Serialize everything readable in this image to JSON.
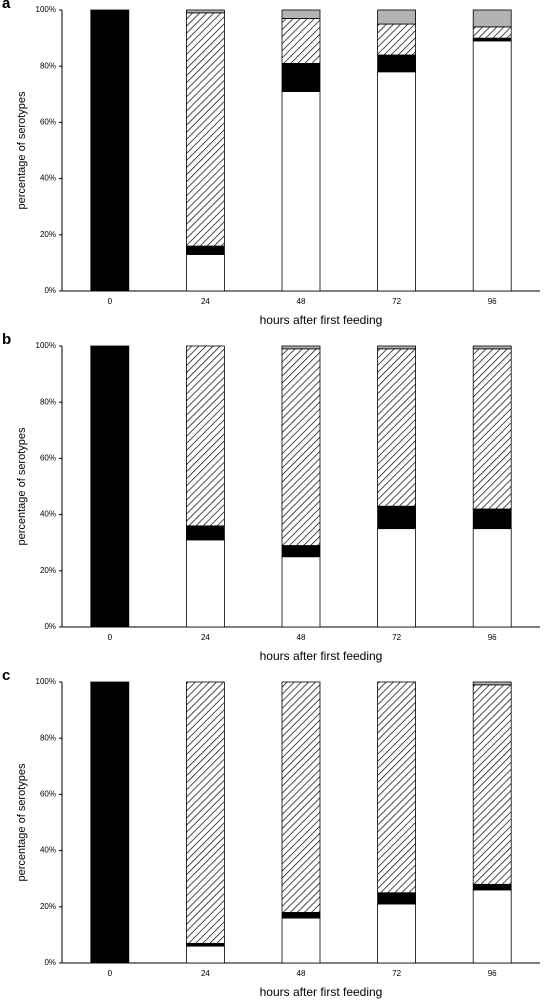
{
  "chart_data": [
    {
      "type": "bar",
      "stacked": true,
      "panel_label": "a",
      "x_label": "hours after first feeding",
      "y_label": "percentage of serotypes",
      "categories": [
        "0",
        "24",
        "48",
        "72",
        "96"
      ],
      "series": [
        {
          "color": "#ffffff",
          "values": [
            0,
            13,
            71,
            78,
            89
          ]
        },
        {
          "color": "#000000",
          "values": [
            100,
            3,
            10,
            6,
            1
          ]
        },
        {
          "color": "#000000",
          "pattern": "hatch",
          "values": [
            0,
            83,
            16,
            11,
            4
          ]
        },
        {
          "color": "#b3b3b3",
          "values": [
            0,
            1,
            3,
            5,
            6
          ]
        }
      ],
      "ylim": [
        0,
        100
      ],
      "yticks": [
        {
          "value": 0,
          "label": "0%"
        },
        {
          "value": 20,
          "label": "20%"
        },
        {
          "value": 40,
          "label": "40%"
        },
        {
          "value": 60,
          "label": "60%"
        },
        {
          "value": 80,
          "label": "80%"
        },
        {
          "value": 100,
          "label": "100%"
        }
      ],
      "grid": false
    },
    {
      "type": "bar",
      "stacked": true,
      "panel_label": "b",
      "x_label": "hours after first feeding",
      "y_label": "percentage of serotypes",
      "categories": [
        "0",
        "24",
        "48",
        "72",
        "96"
      ],
      "series": [
        {
          "color": "#ffffff",
          "values": [
            0,
            31,
            25,
            35,
            35
          ]
        },
        {
          "color": "#000000",
          "values": [
            100,
            5,
            4,
            8,
            7
          ]
        },
        {
          "color": "#000000",
          "pattern": "hatch",
          "values": [
            0,
            64,
            70,
            56,
            57
          ]
        },
        {
          "color": "#b3b3b3",
          "values": [
            0,
            0,
            1,
            1,
            1
          ]
        }
      ],
      "ylim": [
        0,
        100
      ],
      "yticks": [
        {
          "value": 0,
          "label": "0%"
        },
        {
          "value": 20,
          "label": "20%"
        },
        {
          "value": 40,
          "label": "40%"
        },
        {
          "value": 60,
          "label": "60%"
        },
        {
          "value": 80,
          "label": "80%"
        },
        {
          "value": 100,
          "label": "100%"
        }
      ],
      "grid": false
    },
    {
      "type": "bar",
      "stacked": true,
      "panel_label": "c",
      "x_label": "hours after first feeding",
      "y_label": "percentage of serotypes",
      "categories": [
        "0",
        "24",
        "48",
        "72",
        "96"
      ],
      "series": [
        {
          "color": "#ffffff",
          "values": [
            0,
            6,
            16,
            21,
            26
          ]
        },
        {
          "color": "#000000",
          "values": [
            100,
            1,
            2,
            4,
            2
          ]
        },
        {
          "color": "#000000",
          "pattern": "hatch",
          "values": [
            0,
            93,
            82,
            75,
            71
          ]
        },
        {
          "color": "#b3b3b3",
          "values": [
            0,
            0,
            0,
            0,
            1
          ]
        }
      ],
      "ylim": [
        0,
        100
      ],
      "yticks": [
        {
          "value": 0,
          "label": "0%"
        },
        {
          "value": 20,
          "label": "20%"
        },
        {
          "value": 40,
          "label": "40%"
        },
        {
          "value": 60,
          "label": "60%"
        },
        {
          "value": 80,
          "label": "80%"
        },
        {
          "value": 100,
          "label": "100%"
        }
      ],
      "grid": false
    }
  ]
}
